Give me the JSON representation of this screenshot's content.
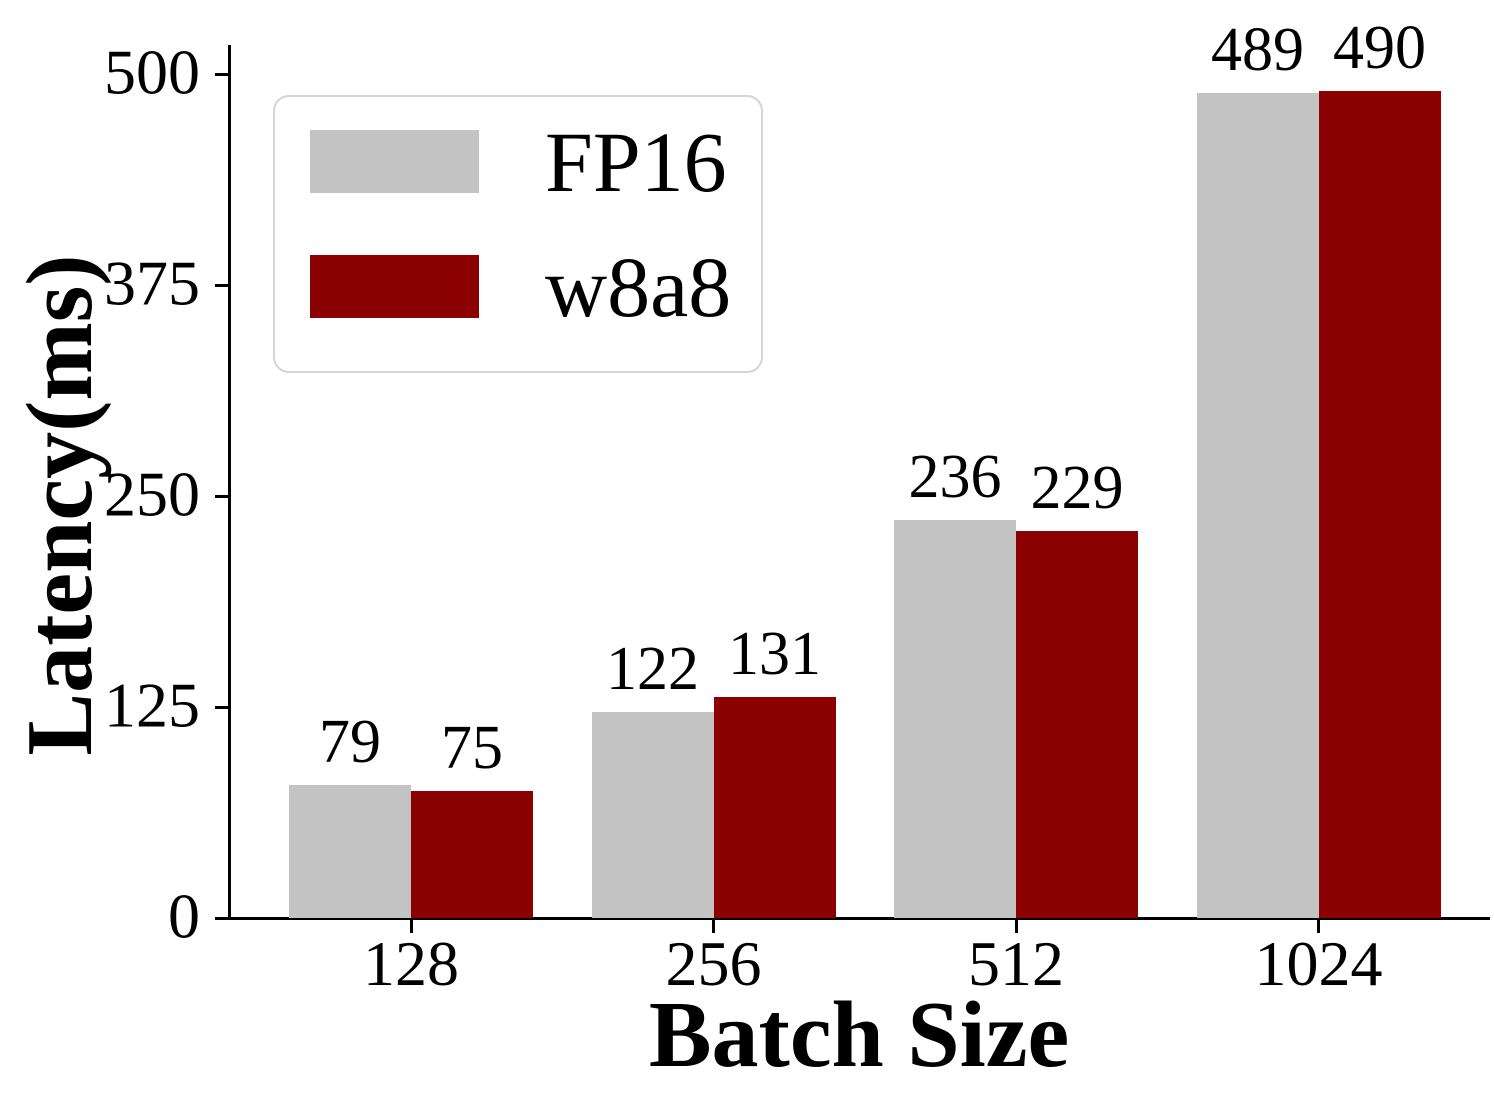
{
  "chart_data": {
    "type": "bar",
    "title": "",
    "xlabel": "Batch Size",
    "ylabel": "Latency(ms)",
    "categories": [
      "128",
      "256",
      "512",
      "1024"
    ],
    "series": [
      {
        "name": "FP16",
        "color": "#c3c3c3",
        "values": [
          79,
          122,
          236,
          489
        ]
      },
      {
        "name": "w8a8",
        "color": "#8b0000",
        "values": [
          75,
          131,
          229,
          490
        ]
      }
    ],
    "yticks": [
      0,
      125,
      250,
      375,
      500
    ],
    "ylim": [
      0,
      500
    ],
    "grid": false,
    "bar_value_labels": true,
    "legend_position": "upper-left",
    "colors": {
      "axis": "#000000",
      "text": "#000000",
      "background": "#ffffff",
      "legend_border": "#d4d4d4"
    }
  }
}
